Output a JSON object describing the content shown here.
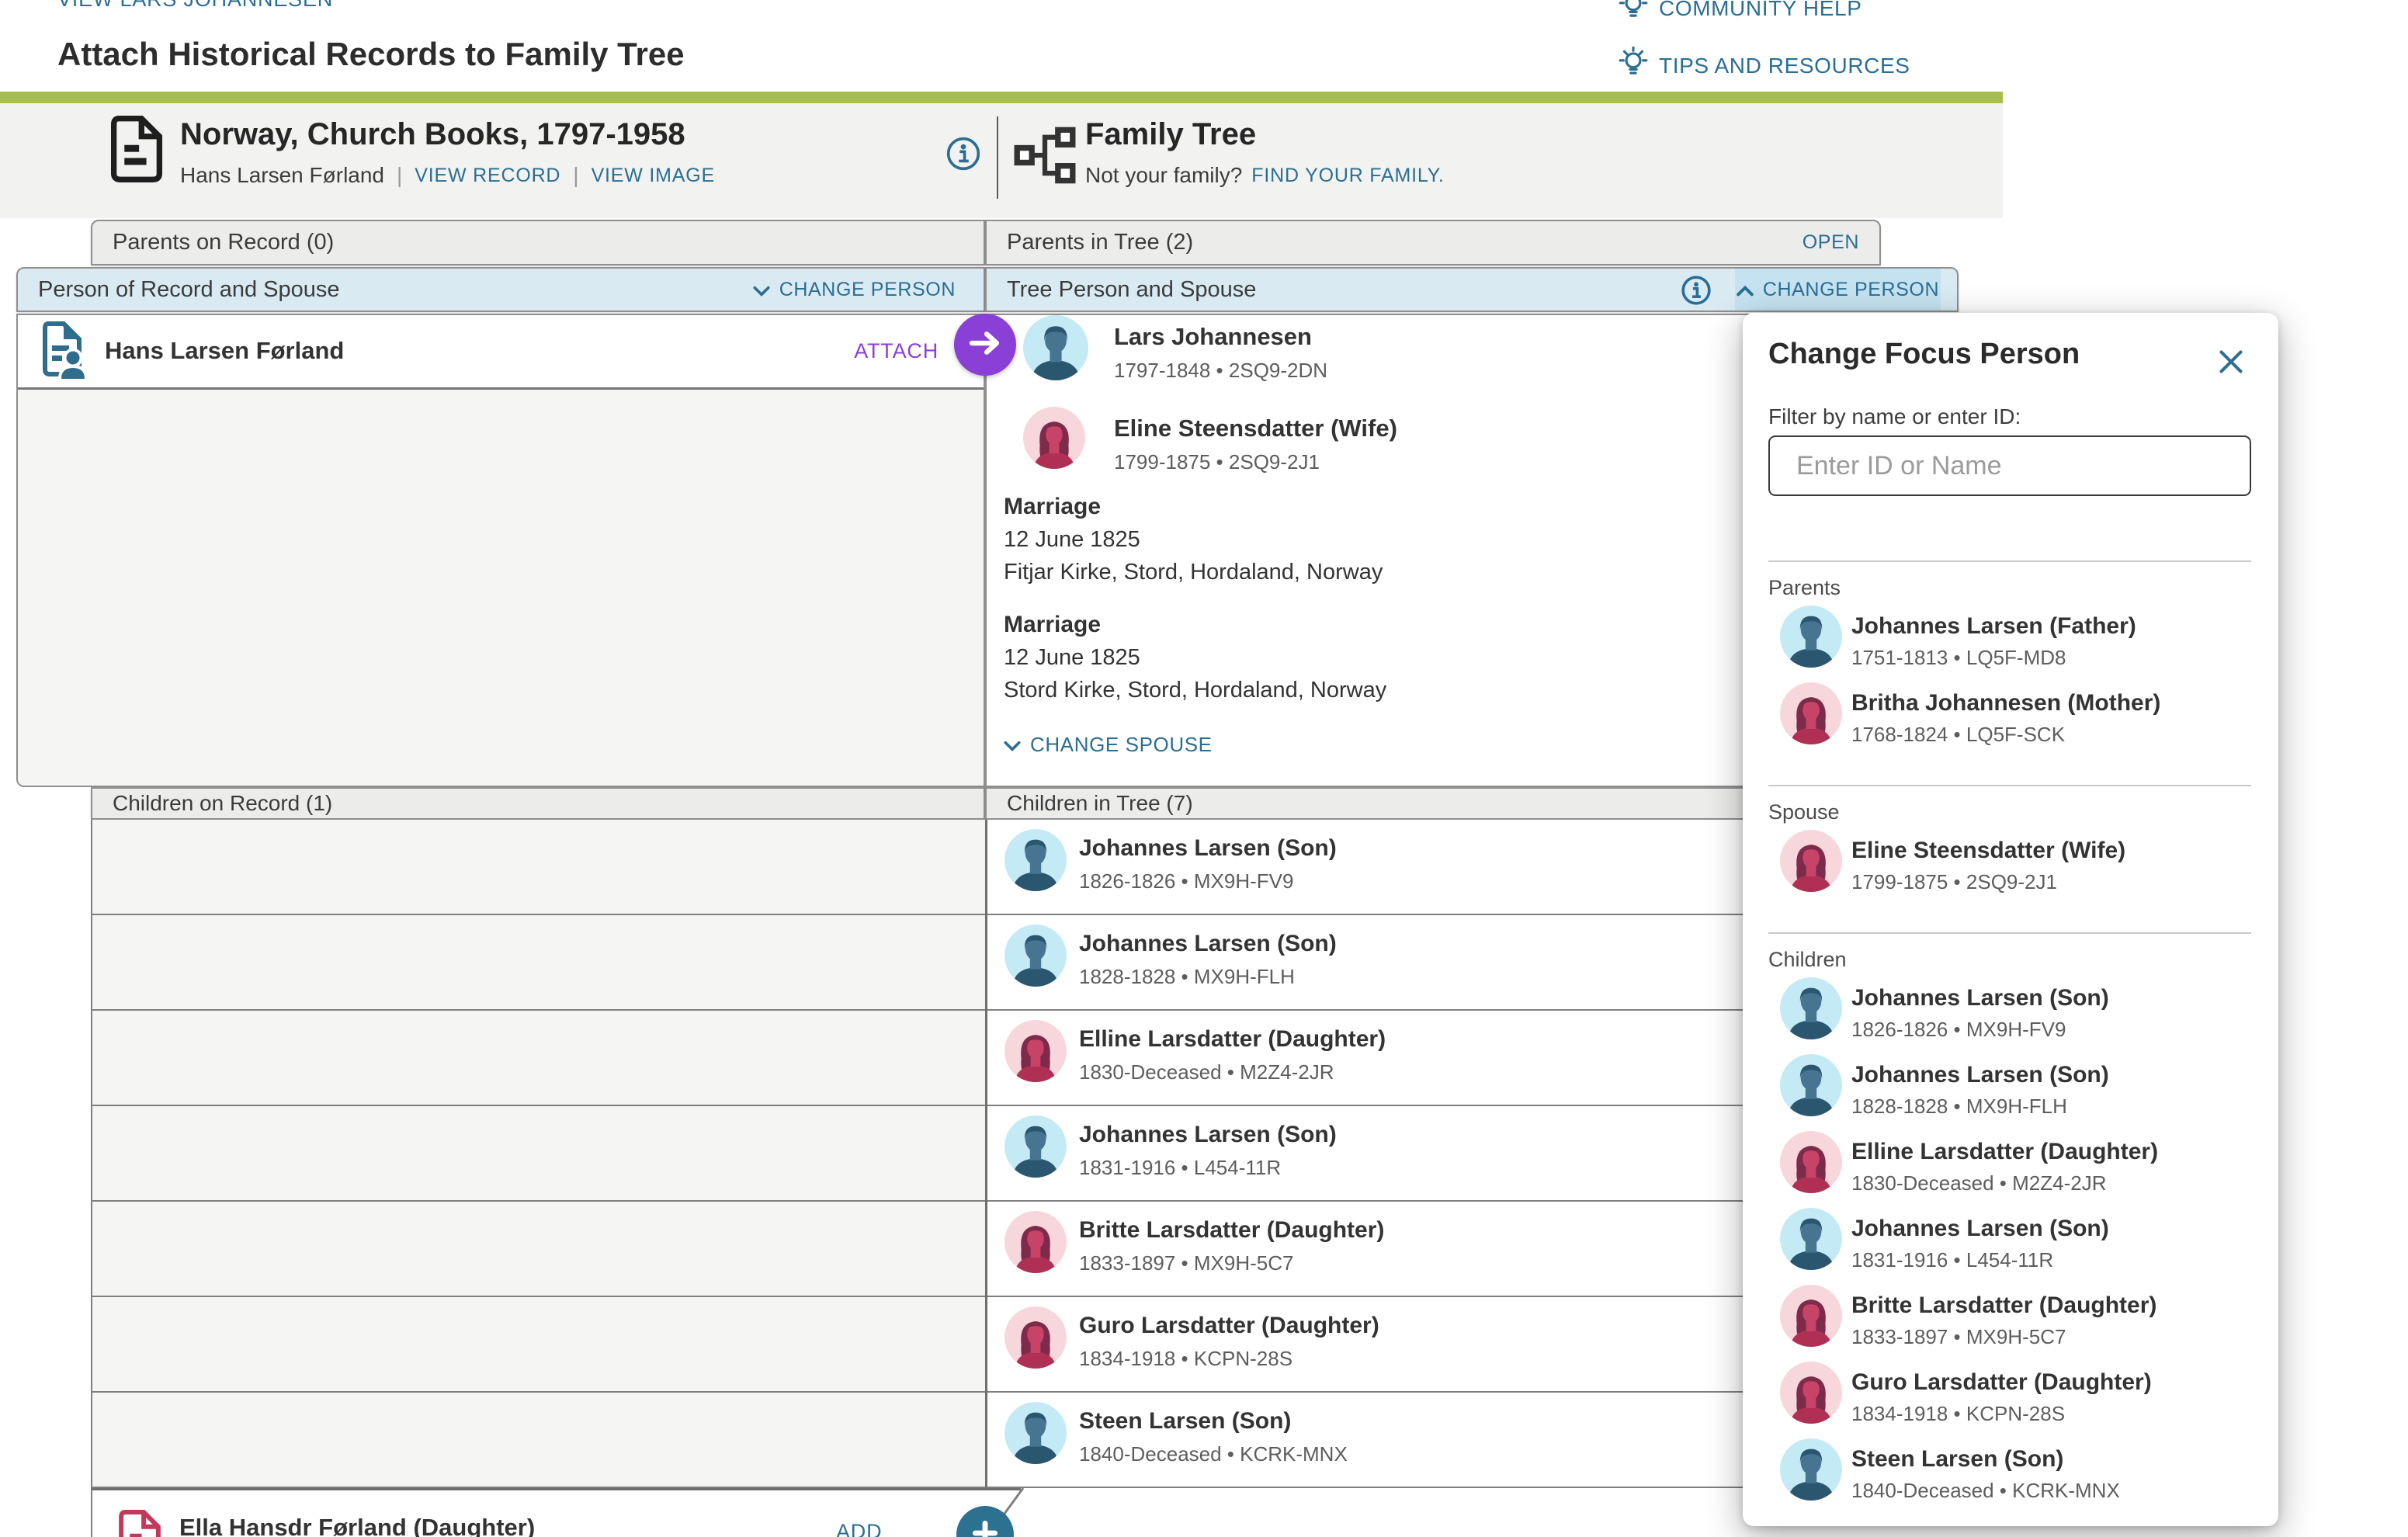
{
  "colors": {
    "accent_teal": "#2A6E93",
    "brand_green": "#A6BE4E",
    "attach_purple": "#8A3FD6",
    "add_teal": "#2D7190",
    "header_gray": "#ECECEB",
    "header_blue": "#D9EAF3",
    "header_blue_active": "#C5E2F0"
  },
  "header": {
    "back_link": "VIEW LARS JOHANNESEN",
    "title": "Attach Historical Records to Family Tree",
    "community_help": "COMMUNITY HELP",
    "tips_resources": "TIPS AND RESOURCES"
  },
  "record_source": {
    "title": "Norway, Church Books, 1797-1958",
    "person_name": "Hans Larsen Førland",
    "view_record": "VIEW RECORD",
    "view_image": "VIEW IMAGE"
  },
  "tree_source": {
    "title": "Family Tree",
    "not_your_family": "Not your family?",
    "find_your_family": "FIND YOUR FAMILY."
  },
  "grid": {
    "parents_on_record": "Parents on Record (0)",
    "parents_in_tree": "Parents in Tree (2)",
    "open": "OPEN",
    "person_of_record": "Person of Record and Spouse",
    "tree_person_header": "Tree Person and Spouse",
    "change_person": "CHANGE PERSON",
    "attach": "ATTACH",
    "record_person": {
      "name": "Hans Larsen Førland"
    },
    "tree_person": {
      "name": "Lars Johannesen",
      "dates": "1797-1848 • 2SQ9-2DN",
      "gender": "m"
    },
    "tree_spouse": {
      "name": "Eline Steensdatter (Wife)",
      "dates": "1799-1875 • 2SQ9-2J1",
      "gender": "f"
    },
    "marriages": [
      {
        "label": "Marriage",
        "date": "12 June 1825",
        "place": "Fitjar Kirke, Stord, Hordaland, Norway"
      },
      {
        "label": "Marriage",
        "date": "12 June 1825",
        "place": "Stord Kirke, Stord, Hordaland, Norway"
      }
    ],
    "change_spouse": "CHANGE SPOUSE",
    "children_on_record": "Children on Record (1)",
    "children_in_tree": "Children in Tree (7)",
    "children_tree": [
      {
        "name": "Johannes Larsen (Son)",
        "dates": "1826-1826 • MX9H-FV9",
        "gender": "m"
      },
      {
        "name": "Johannes Larsen (Son)",
        "dates": "1828-1828 • MX9H-FLH",
        "gender": "m"
      },
      {
        "name": "Elline Larsdatter (Daughter)",
        "dates": "1830-Deceased • M2Z4-2JR",
        "gender": "f"
      },
      {
        "name": "Johannes Larsen (Son)",
        "dates": "1831-1916 • L454-11R",
        "gender": "m"
      },
      {
        "name": "Britte Larsdatter (Daughter)",
        "dates": "1833-1897 • MX9H-5C7",
        "gender": "f"
      },
      {
        "name": "Guro Larsdatter (Daughter)",
        "dates": "1834-1918 • KCPN-28S",
        "gender": "f"
      },
      {
        "name": "Steen Larsen (Son)",
        "dates": "1840-Deceased • KCRK-MNX",
        "gender": "m"
      }
    ],
    "record_child": {
      "name": "Ella Hansdr Førland (Daughter)",
      "add": "ADD"
    }
  },
  "modal": {
    "title": "Change Focus Person",
    "filter_label": "Filter by name or enter ID:",
    "input_placeholder": "Enter ID or Name",
    "input_value": "",
    "sections": [
      {
        "label": "Parents",
        "people": [
          {
            "name": "Johannes Larsen (Father)",
            "dates": "1751-1813 • LQ5F-MD8",
            "gender": "m"
          },
          {
            "name": "Britha Johannesen (Mother)",
            "dates": "1768-1824 • LQ5F-SCK",
            "gender": "f"
          }
        ]
      },
      {
        "label": "Spouse",
        "people": [
          {
            "name": "Eline Steensdatter (Wife)",
            "dates": "1799-1875 • 2SQ9-2J1",
            "gender": "f"
          }
        ]
      },
      {
        "label": "Children",
        "people": [
          {
            "name": "Johannes Larsen (Son)",
            "dates": "1826-1826 • MX9H-FV9",
            "gender": "m"
          },
          {
            "name": "Johannes Larsen (Son)",
            "dates": "1828-1828 • MX9H-FLH",
            "gender": "m"
          },
          {
            "name": "Elline Larsdatter (Daughter)",
            "dates": "1830-Deceased • M2Z4-2JR",
            "gender": "f"
          },
          {
            "name": "Johannes Larsen (Son)",
            "dates": "1831-1916 • L454-11R",
            "gender": "m"
          },
          {
            "name": "Britte Larsdatter (Daughter)",
            "dates": "1833-1897 • MX9H-5C7",
            "gender": "f"
          },
          {
            "name": "Guro Larsdatter (Daughter)",
            "dates": "1834-1918 • KCPN-28S",
            "gender": "f"
          },
          {
            "name": "Steen Larsen (Son)",
            "dates": "1840-Deceased • KCRK-MNX",
            "gender": "m"
          }
        ]
      }
    ]
  }
}
